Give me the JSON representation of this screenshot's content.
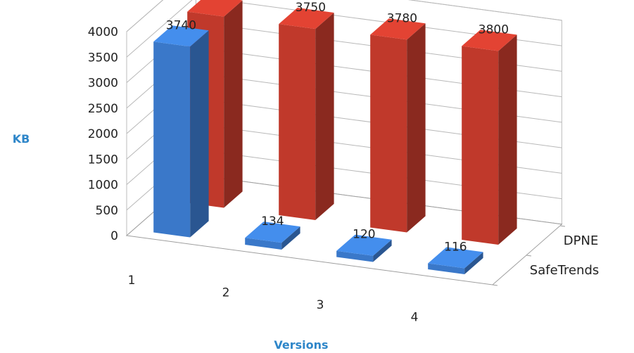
{
  "chart_data": {
    "type": "bar",
    "three_d": true,
    "categories": [
      "1",
      "2",
      "3",
      "4"
    ],
    "series": [
      {
        "name": "DPNE",
        "values": [
          3750,
          3750,
          3780,
          3800
        ],
        "color": "#c0392b"
      },
      {
        "name": "SafeTrends",
        "values": [
          3740,
          134,
          120,
          116
        ],
        "color": "#3a78c9"
      }
    ],
    "ylabel": "KB",
    "xlabel": "Versions",
    "ylim": [
      0,
      4000
    ],
    "yticks": [
      "0",
      "500",
      "1000",
      "1500",
      "2000",
      "2500",
      "3000",
      "3500",
      "4000"
    ],
    "grid": true,
    "axis_title_color": "#2e86c9"
  }
}
